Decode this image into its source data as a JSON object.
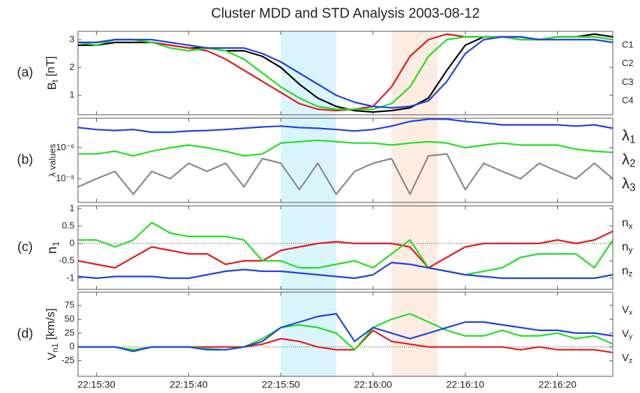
{
  "chart_data": [
    {
      "type": "line",
      "title": "Cluster MDD and STD Analysis 2003-08-12",
      "panel_label": "(a)",
      "ylabel": "Bt [nT]",
      "x": [
        "22:15:28",
        "22:15:30",
        "22:15:32",
        "22:15:34",
        "22:15:36",
        "22:15:38",
        "22:15:40",
        "22:15:42",
        "22:15:44",
        "22:15:46",
        "22:15:48",
        "22:15:50",
        "22:15:52",
        "22:15:54",
        "22:15:56",
        "22:15:58",
        "22:16:00",
        "22:16:02",
        "22:16:04",
        "22:16:06",
        "22:16:08",
        "22:16:10",
        "22:16:12",
        "22:16:14",
        "22:16:16",
        "22:16:18",
        "22:16:20",
        "22:16:22",
        "22:16:24",
        "22:16:26"
      ],
      "xlim": [
        "22:15:28",
        "22:16:26"
      ],
      "xticks": [
        "22:15:30",
        "22:15:40",
        "22:15:50",
        "22:16:00",
        "22:16:10",
        "22:16:20"
      ],
      "ylim": [
        0.3,
        3.3
      ],
      "yticks": [
        1,
        2,
        3
      ],
      "legend": "right",
      "highlights": [
        {
          "start": "22:15:50",
          "end": "22:15:56",
          "color": "#d4f2fb"
        },
        {
          "start": "22:16:02",
          "end": "22:16:07",
          "color": "#fce9dc"
        }
      ],
      "series": [
        {
          "name": "C1",
          "color": "#000000",
          "values": [
            2.8,
            2.8,
            2.9,
            2.9,
            2.9,
            2.8,
            2.7,
            2.7,
            2.6,
            2.6,
            2.4,
            2.0,
            1.4,
            0.9,
            0.6,
            0.45,
            0.4,
            0.45,
            0.55,
            0.9,
            1.9,
            2.8,
            3.1,
            3.1,
            3.1,
            3.0,
            3.1,
            3.1,
            3.2,
            3.1
          ]
        },
        {
          "name": "C2",
          "color": "#e3191c",
          "values": [
            2.9,
            2.9,
            3.0,
            3.0,
            2.9,
            2.8,
            2.7,
            2.6,
            2.3,
            1.9,
            1.5,
            1.1,
            0.7,
            0.5,
            0.45,
            0.5,
            0.6,
            1.3,
            2.4,
            3.0,
            3.2,
            3.1,
            3.1,
            3.1,
            3.0,
            3.0,
            3.1,
            3.1,
            3.1,
            3.0
          ]
        },
        {
          "name": "C3",
          "color": "#22dd22",
          "values": [
            2.9,
            2.8,
            3.0,
            3.0,
            2.9,
            2.7,
            2.6,
            2.7,
            2.6,
            2.3,
            1.8,
            1.3,
            0.9,
            0.6,
            0.5,
            0.5,
            0.5,
            0.7,
            1.3,
            2.4,
            3.0,
            3.1,
            3.1,
            3.1,
            3.0,
            3.0,
            3.1,
            3.1,
            3.1,
            3.0
          ]
        },
        {
          "name": "C4",
          "color": "#1f3fe0",
          "values": [
            2.9,
            2.9,
            3.0,
            3.0,
            3.0,
            2.9,
            2.8,
            2.7,
            2.7,
            2.7,
            2.5,
            2.2,
            1.8,
            1.4,
            1.0,
            0.75,
            0.6,
            0.55,
            0.6,
            0.8,
            1.5,
            2.5,
            3.0,
            3.1,
            3.1,
            3.0,
            3.0,
            3.0,
            3.0,
            2.9
          ]
        }
      ]
    },
    {
      "type": "line",
      "panel_label": "(b)",
      "ylabel": "λ values",
      "log": true,
      "x": [
        "22:15:28",
        "22:15:30",
        "22:15:32",
        "22:15:34",
        "22:15:36",
        "22:15:38",
        "22:15:40",
        "22:15:42",
        "22:15:44",
        "22:15:46",
        "22:15:48",
        "22:15:50",
        "22:15:52",
        "22:15:54",
        "22:15:56",
        "22:15:58",
        "22:16:00",
        "22:16:02",
        "22:16:04",
        "22:16:06",
        "22:16:08",
        "22:16:10",
        "22:16:12",
        "22:16:14",
        "22:16:16",
        "22:16:18",
        "22:16:20",
        "22:16:22",
        "22:16:24",
        "22:16:26"
      ],
      "xlim": [
        "22:15:28",
        "22:16:26"
      ],
      "xticks": [
        "22:15:30",
        "22:15:40",
        "22:15:50",
        "22:16:00",
        "22:16:10",
        "22:16:20"
      ],
      "ylim": [
        3e-10,
        8e-05
      ],
      "yticks": [
        {
          "value": 1e-06,
          "label": "10⁻⁶"
        },
        {
          "value": 1e-08,
          "label": "10⁻⁸"
        }
      ],
      "legend": "right",
      "series": [
        {
          "name": "λ1",
          "color": "#1f3fe0",
          "values": [
            2e-05,
            1.5e-05,
            1.3e-05,
            1.5e-05,
            1e-05,
            1e-05,
            1.2e-05,
            1.3e-05,
            1.5e-05,
            1.8e-05,
            2.2e-05,
            2.5e-05,
            2e-05,
            1.8e-05,
            1.5e-05,
            1.2e-05,
            1.5e-05,
            2.5e-05,
            5e-05,
            7e-05,
            7e-05,
            5e-05,
            4e-05,
            3e-05,
            3e-05,
            3e-05,
            3e-05,
            2.5e-05,
            3e-05,
            1.8e-05
          ]
        },
        {
          "name": "λ2",
          "color": "#22dd22",
          "values": [
            4e-07,
            4e-07,
            6e-07,
            3e-07,
            6e-07,
            1e-06,
            1.5e-06,
            1e-06,
            6e-07,
            3e-07,
            4e-07,
            2e-06,
            2.5e-06,
            3e-06,
            2.5e-06,
            2e-06,
            2e-06,
            1.5e-06,
            2e-06,
            2.5e-06,
            2e-06,
            1e-06,
            1.5e-06,
            2e-06,
            1.5e-06,
            1.5e-06,
            1.5e-06,
            8e-07,
            6e-07,
            5e-07
          ]
        },
        {
          "name": "λ3",
          "color": "#888888",
          "values": [
            3e-09,
            1e-08,
            3e-08,
            1e-09,
            3e-08,
            1e-08,
            1e-07,
            3e-08,
            1e-07,
            3e-09,
            2e-07,
            1e-07,
            2e-09,
            1e-07,
            1e-09,
            3e-08,
            1e-07,
            2e-07,
            1e-09,
            3e-07,
            4e-07,
            2e-09,
            1e-07,
            3e-08,
            1e-08,
            1e-07,
            3e-08,
            1e-08,
            1e-07,
            1e-08
          ]
        }
      ]
    },
    {
      "type": "line",
      "panel_label": "(c)",
      "ylabel": "n1",
      "zero_line": true,
      "x": [
        "22:15:28",
        "22:15:30",
        "22:15:32",
        "22:15:34",
        "22:15:36",
        "22:15:38",
        "22:15:40",
        "22:15:42",
        "22:15:44",
        "22:15:46",
        "22:15:48",
        "22:15:50",
        "22:15:52",
        "22:15:54",
        "22:15:56",
        "22:15:58",
        "22:16:00",
        "22:16:02",
        "22:16:04",
        "22:16:06",
        "22:16:08",
        "22:16:10",
        "22:16:12",
        "22:16:14",
        "22:16:16",
        "22:16:18",
        "22:16:20",
        "22:16:22",
        "22:16:24",
        "22:16:26"
      ],
      "xlim": [
        "22:15:28",
        "22:16:26"
      ],
      "xticks": [
        "22:15:30",
        "22:15:40",
        "22:15:50",
        "22:16:00",
        "22:16:10",
        "22:16:20"
      ],
      "ylim": [
        -1.32,
        1.08
      ],
      "yticks": [
        1,
        0.5,
        0,
        -0.5,
        -1
      ],
      "legend": "right",
      "series": [
        {
          "name": "nx",
          "color": "#e3191c",
          "values": [
            -0.5,
            -0.6,
            -0.7,
            -0.4,
            -0.1,
            -0.2,
            -0.3,
            -0.3,
            -0.6,
            -0.5,
            -0.5,
            -0.2,
            -0.1,
            0.0,
            0.05,
            0.0,
            0.0,
            0.0,
            -0.1,
            -0.7,
            -0.4,
            -0.1,
            0.0,
            0.0,
            0.0,
            0.0,
            0.1,
            0.0,
            0.1,
            0.35
          ]
        },
        {
          "name": "ny",
          "color": "#22dd22",
          "values": [
            0.1,
            0.1,
            -0.1,
            0.1,
            0.6,
            0.3,
            0.2,
            0.2,
            0.2,
            0.1,
            -0.5,
            -0.5,
            -0.7,
            -0.7,
            -0.6,
            -0.5,
            -0.7,
            -0.3,
            0.1,
            -0.7,
            -0.8,
            -0.9,
            -0.8,
            -0.7,
            -0.4,
            -0.3,
            -0.3,
            -0.3,
            -0.7,
            0.1
          ]
        },
        {
          "name": "nz",
          "color": "#1f3fe0",
          "values": [
            -0.95,
            -1.0,
            -0.95,
            -0.95,
            -0.95,
            -1.0,
            -1.0,
            -0.9,
            -0.8,
            -0.75,
            -0.8,
            -0.8,
            -0.85,
            -0.9,
            -0.95,
            -1.0,
            -0.9,
            -0.55,
            -0.6,
            -0.7,
            -0.8,
            -0.9,
            -0.95,
            -1.0,
            -1.0,
            -1.0,
            -1.0,
            -1.0,
            -1.0,
            -0.9
          ]
        }
      ]
    },
    {
      "type": "line",
      "panel_label": "(d)",
      "ylabel": "Vn1 [km/s]",
      "zero_line": true,
      "x": [
        "22:15:28",
        "22:15:30",
        "22:15:32",
        "22:15:34",
        "22:15:36",
        "22:15:38",
        "22:15:40",
        "22:15:42",
        "22:15:44",
        "22:15:46",
        "22:15:48",
        "22:15:50",
        "22:15:52",
        "22:15:54",
        "22:15:56",
        "22:15:58",
        "22:16:00",
        "22:16:02",
        "22:16:04",
        "22:16:06",
        "22:16:08",
        "22:16:10",
        "22:16:12",
        "22:16:14",
        "22:16:16",
        "22:16:18",
        "22:16:20",
        "22:16:22",
        "22:16:24",
        "22:16:26"
      ],
      "xlim": [
        "22:15:28",
        "22:16:26"
      ],
      "xticks": [
        "22:15:30",
        "22:15:40",
        "22:15:50",
        "22:16:00",
        "22:16:10",
        "22:16:20"
      ],
      "ylim": [
        -53,
        99
      ],
      "yticks": [
        75,
        50,
        25,
        0,
        -25
      ],
      "legend": "right",
      "series": [
        {
          "name": "Vx",
          "color": "#e3191c",
          "values": [
            0,
            0,
            0,
            -5,
            0,
            0,
            0,
            0,
            0,
            0,
            5,
            15,
            10,
            0,
            -5,
            -5,
            30,
            10,
            5,
            0,
            0,
            0,
            0,
            0,
            -5,
            0,
            -5,
            -5,
            -5,
            -10
          ]
        },
        {
          "name": "Vy",
          "color": "#22dd22",
          "values": [
            0,
            0,
            0,
            -5,
            0,
            0,
            0,
            -3,
            -5,
            0,
            15,
            35,
            40,
            35,
            25,
            -5,
            35,
            50,
            60,
            45,
            30,
            20,
            20,
            30,
            20,
            20,
            25,
            15,
            20,
            5
          ]
        },
        {
          "name": "Vz",
          "color": "#1f3fe0",
          "values": [
            0,
            0,
            0,
            -8,
            0,
            0,
            0,
            -5,
            -5,
            0,
            10,
            35,
            45,
            55,
            60,
            10,
            35,
            25,
            15,
            25,
            35,
            45,
            45,
            40,
            35,
            30,
            30,
            25,
            25,
            20
          ]
        }
      ]
    }
  ]
}
